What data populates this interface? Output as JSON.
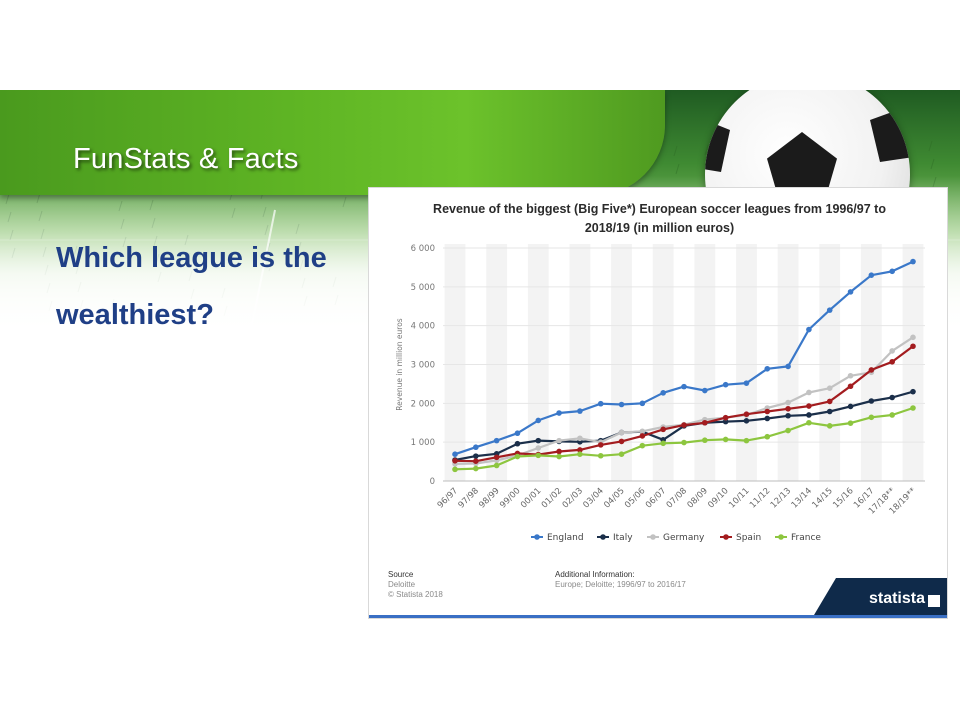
{
  "slide": {
    "header_title": "FunStats & Facts",
    "question_line1": "Which league is the",
    "question_line2": "wealthiest?"
  },
  "colors": {
    "England": "#3a78c9",
    "Italy": "#1b2f4a",
    "Germany": "#c2c2c2",
    "Spain": "#a31c1f",
    "France": "#8dc63f",
    "question_text": "#1f3f86"
  },
  "chart_data": {
    "type": "line",
    "title_line1": "Revenue of the biggest (Big Five*) European soccer leagues from 1996/97 to",
    "title_line2": "2018/19 (in million euros)",
    "ylabel": "Revenue in million euros",
    "ylim": [
      0,
      6000
    ],
    "yticks": [
      "0",
      "1 000",
      "2 000",
      "3 000",
      "4 000",
      "5 000",
      "6 000"
    ],
    "ytick_values": [
      0,
      1000,
      2000,
      3000,
      4000,
      5000,
      6000
    ],
    "categories": [
      "96/97",
      "97/98",
      "98/99",
      "99/00",
      "00/01",
      "01/02",
      "02/03",
      "03/04",
      "04/05",
      "05/06",
      "06/07",
      "07/08",
      "08/09",
      "09/10",
      "10/11",
      "11/12",
      "12/13",
      "13/14",
      "14/15",
      "15/16",
      "16/17",
      "17/18**",
      "18/19**"
    ],
    "grid": "vertical bands",
    "legend_position": "bottom",
    "series": [
      {
        "name": "England",
        "values": [
          690,
          870,
          1040,
          1230,
          1560,
          1750,
          1800,
          1990,
          1970,
          2000,
          2270,
          2430,
          2330,
          2480,
          2520,
          2890,
          2950,
          3900,
          4400,
          4870,
          5300,
          5400,
          5650
        ]
      },
      {
        "name": "Italy",
        "values": [
          540,
          640,
          700,
          960,
          1040,
          1020,
          1010,
          1040,
          1250,
          1270,
          1060,
          1420,
          1500,
          1530,
          1550,
          1610,
          1680,
          1700,
          1790,
          1920,
          2060,
          2150,
          2300
        ]
      },
      {
        "name": "Germany",
        "values": [
          440,
          450,
          530,
          660,
          850,
          1040,
          1100,
          1000,
          1250,
          1280,
          1390,
          1450,
          1580,
          1630,
          1700,
          1880,
          2020,
          2280,
          2390,
          2710,
          2800,
          3350,
          3700
        ]
      },
      {
        "name": "Spain",
        "values": [
          520,
          510,
          610,
          710,
          680,
          760,
          800,
          930,
          1020,
          1160,
          1330,
          1440,
          1500,
          1630,
          1720,
          1790,
          1860,
          1930,
          2050,
          2440,
          2860,
          3070,
          3470
        ]
      },
      {
        "name": "France",
        "values": [
          300,
          320,
          400,
          630,
          660,
          630,
          690,
          650,
          690,
          910,
          970,
          990,
          1050,
          1070,
          1040,
          1140,
          1300,
          1500,
          1420,
          1490,
          1640,
          1700,
          1880
        ]
      }
    ],
    "source_head": "Source",
    "source_lines": [
      "Deloitte",
      "© Statista 2018"
    ],
    "additional_head": "Additional Information:",
    "additional_lines": [
      "Europe; Deloitte; 1996/97 to 2016/17"
    ],
    "brand": "statista"
  }
}
